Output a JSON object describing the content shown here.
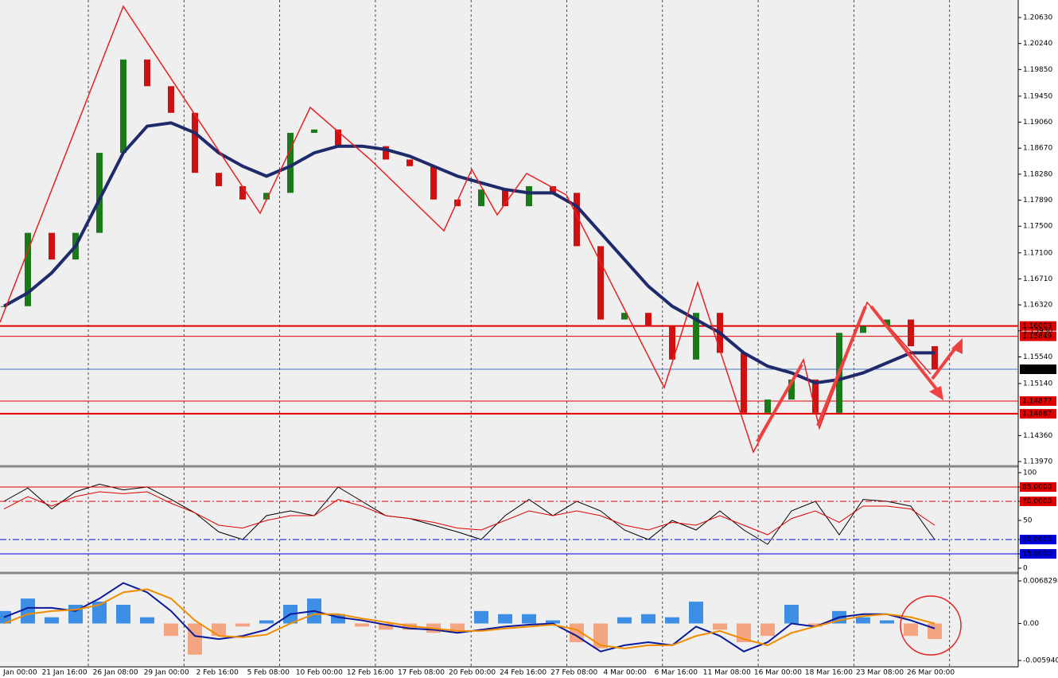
{
  "chart_data": [
    {
      "type": "candlestick",
      "values": [
        1.163,
        1.174,
        1.17,
        1.174,
        1.186,
        1.2,
        1.196,
        1.192,
        1.183,
        1.181,
        1.179,
        1.18,
        1.189,
        1.1895,
        1.187,
        1.187,
        1.185,
        1.184,
        1.179,
        1.178,
        1.1805,
        1.178,
        1.181,
        1.18,
        1.172,
        1.161,
        1.162,
        1.16,
        1.155,
        1.162,
        1.156,
        1.147,
        1.149,
        1.152,
        1.147,
        1.159,
        1.16,
        1.161,
        1.157,
        1.1535
      ],
      "up_color": "#1a7a1a",
      "down_color": "#d01010",
      "ma_values": [
        1.163,
        1.165,
        1.168,
        1.172,
        1.179,
        1.186,
        1.19,
        1.1905,
        1.189,
        1.186,
        1.184,
        1.1825,
        1.184,
        1.186,
        1.187,
        1.187,
        1.1865,
        1.1855,
        1.184,
        1.1825,
        1.1815,
        1.1805,
        1.18,
        1.18,
        1.178,
        1.174,
        1.17,
        1.166,
        1.163,
        1.161,
        1.159,
        1.156,
        1.154,
        1.153,
        1.1515,
        1.152,
        1.153,
        1.1545,
        1.156,
        1.156
      ],
      "ma_color": "#1f2a6b",
      "ylim": [
        1.1397,
        1.2063
      ],
      "yticks": [
        {
          "value": 1.2063,
          "label": "1.20630"
        },
        {
          "value": 1.2024,
          "label": "1.20240"
        },
        {
          "value": 1.1985,
          "label": "1.19850"
        },
        {
          "value": 1.1945,
          "label": "1.19450"
        },
        {
          "value": 1.1906,
          "label": "1.19060"
        },
        {
          "value": 1.1867,
          "label": "1.18670"
        },
        {
          "value": 1.1828,
          "label": "1.18280"
        },
        {
          "value": 1.1789,
          "label": "1.17890"
        },
        {
          "value": 1.175,
          "label": "1.17500"
        },
        {
          "value": 1.171,
          "label": "1.17100"
        },
        {
          "value": 1.1671,
          "label": "1.16710"
        },
        {
          "value": 1.1632,
          "label": "1.16320"
        },
        {
          "value": 1.1593,
          "label": "1.15930"
        },
        {
          "value": 1.1554,
          "label": "1.15540"
        },
        {
          "value": 1.1514,
          "label": "1.15140"
        },
        {
          "value": 1.1436,
          "label": "1.14360"
        },
        {
          "value": 1.1397,
          "label": "1.13970"
        }
      ],
      "levels": [
        {
          "value": 1.16003,
          "color": "#e00000",
          "style": "thick"
        },
        {
          "value": 1.15849,
          "color": "#e00000",
          "style": "thin"
        },
        {
          "value": 1.15354,
          "color": "#4a78c0",
          "style": "current"
        },
        {
          "value": 1.14877,
          "color": "#e00000",
          "style": "thin"
        },
        {
          "value": 1.14687,
          "color": "#e00000",
          "style": "thick"
        }
      ]
    },
    {
      "type": "line",
      "series": [
        {
          "color": "#000000",
          "values": [
            70,
            84,
            62,
            80,
            88,
            82,
            85,
            72,
            58,
            38,
            30,
            55,
            60,
            55,
            85,
            70,
            55,
            52,
            45,
            38,
            30,
            55,
            72,
            55,
            70,
            60,
            40,
            30,
            50,
            40,
            60,
            40,
            25,
            60,
            70,
            35,
            72,
            70,
            65,
            30
          ]
        },
        {
          "color": "#e00000",
          "values": [
            62,
            75,
            65,
            75,
            80,
            78,
            80,
            68,
            58,
            45,
            42,
            50,
            55,
            55,
            72,
            65,
            55,
            52,
            48,
            42,
            40,
            50,
            60,
            55,
            60,
            55,
            45,
            40,
            48,
            45,
            55,
            45,
            35,
            52,
            60,
            48,
            65,
            65,
            62,
            45
          ]
        }
      ],
      "ylim": [
        0,
        100
      ],
      "yticks": [
        100,
        {
          "value": 85,
          "label": "85.0000",
          "color": "#e00000",
          "style": "solid"
        },
        {
          "value": 70,
          "label": "70.0000",
          "color": "#e00000",
          "style": "dashdot"
        },
        50,
        {
          "value": 30,
          "label": "30.0000",
          "color": "#0000e0",
          "style": "dashdot"
        },
        {
          "value": 15,
          "label": "15.0000",
          "color": "#0000e0",
          "style": "solid"
        },
        0
      ]
    },
    {
      "type": "macd",
      "values": [
        0.002,
        0.004,
        0.001,
        0.003,
        0.0035,
        0.003,
        0.001,
        -0.002,
        -0.005,
        -0.002,
        -0.0005,
        0.0005,
        0.003,
        0.004,
        0.0015,
        -0.0005,
        -0.001,
        -0.001,
        -0.0015,
        -0.0015,
        0.002,
        0.0015,
        0.0015,
        0.0005,
        -0.003,
        -0.004,
        0.001,
        0.0015,
        0.001,
        0.0035,
        -0.001,
        -0.003,
        -0.002,
        0.003,
        -0.0005,
        0.002,
        0.001,
        0.0005,
        -0.002,
        -0.0025
      ],
      "up_color": "#3d8fe6",
      "down_color": "#f4a582",
      "series": [
        {
          "color": "#0a1a9a",
          "values": [
            0.001,
            0.0025,
            0.0025,
            0.002,
            0.004,
            0.0065,
            0.005,
            0.002,
            -0.002,
            -0.0025,
            -0.002,
            -0.001,
            0.0015,
            0.002,
            0.001,
            0.0005,
            -0.0002,
            -0.0008,
            -0.001,
            -0.0015,
            -0.001,
            -0.0005,
            -0.0002,
            0,
            -0.002,
            -0.0045,
            -0.0035,
            -0.003,
            -0.0035,
            -0.0005,
            -0.002,
            -0.0045,
            -0.003,
            0,
            -0.0005,
            0.001,
            0.0015,
            0.0015,
            0.0005,
            -0.0008
          ]
        },
        {
          "color": "#f08c00",
          "values": [
            0,
            0.0015,
            0.002,
            0.0022,
            0.003,
            0.005,
            0.0055,
            0.004,
            0.0005,
            -0.002,
            -0.0022,
            -0.0018,
            0,
            0.0015,
            0.0015,
            0.0008,
            0.0002,
            -0.0004,
            -0.0008,
            -0.0012,
            -0.0012,
            -0.0008,
            -0.0005,
            -0.0002,
            -0.001,
            -0.0035,
            -0.004,
            -0.0035,
            -0.0035,
            -0.002,
            -0.0012,
            -0.0025,
            -0.0035,
            -0.0015,
            -0.0005,
            0.0005,
            0.0012,
            0.0015,
            0.001,
            0
          ]
        }
      ],
      "ylim": [
        -0.00594,
        0.0068298
      ],
      "yticks": [
        0.0068298,
        {
          "value": 0,
          "label": "0.00"
        },
        {
          "value": -0.00594,
          "label": "-0.005940"
        }
      ],
      "x_labels": [
        "Jan 00:00",
        "21 Jan 16:00",
        "26 Jan 08:00",
        "29 Jan 00:00",
        "2 Feb 16:00",
        "5 Feb 08:00",
        "10 Feb 00:00",
        "12 Feb 16:00",
        "17 Feb 08:00",
        "20 Feb 00:00",
        "24 Feb 16:00",
        "27 Feb 08:00",
        "4 Mar 00:00",
        "6 Mar 16:00",
        "11 Mar 08:00",
        "16 Mar 00:00",
        "18 Mar 16:00",
        "23 Mar 08:00",
        "26 Mar 00:00"
      ]
    }
  ]
}
